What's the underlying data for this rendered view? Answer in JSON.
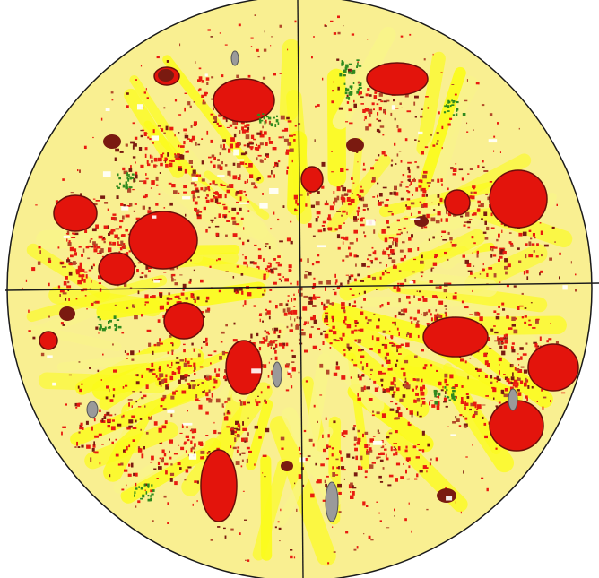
{
  "image": {
    "subject": "pizza",
    "colors": {
      "background": "#ffffff",
      "base": "#f9ef91",
      "cheese": "#fcfc1c",
      "cheese_pale": "#faf58a",
      "sauce": "#e81b0f",
      "pepperoni": "#e3140c",
      "pepperoni_outline": "#6b0e0a",
      "dark_topping": "#7a1a10",
      "brown_speck": "#b24a2a",
      "herb": "#2f8a1e",
      "mushroom": "#9a9a9a",
      "cut_line": "#1a1a1a",
      "rim": "#1a1a1a"
    }
  }
}
